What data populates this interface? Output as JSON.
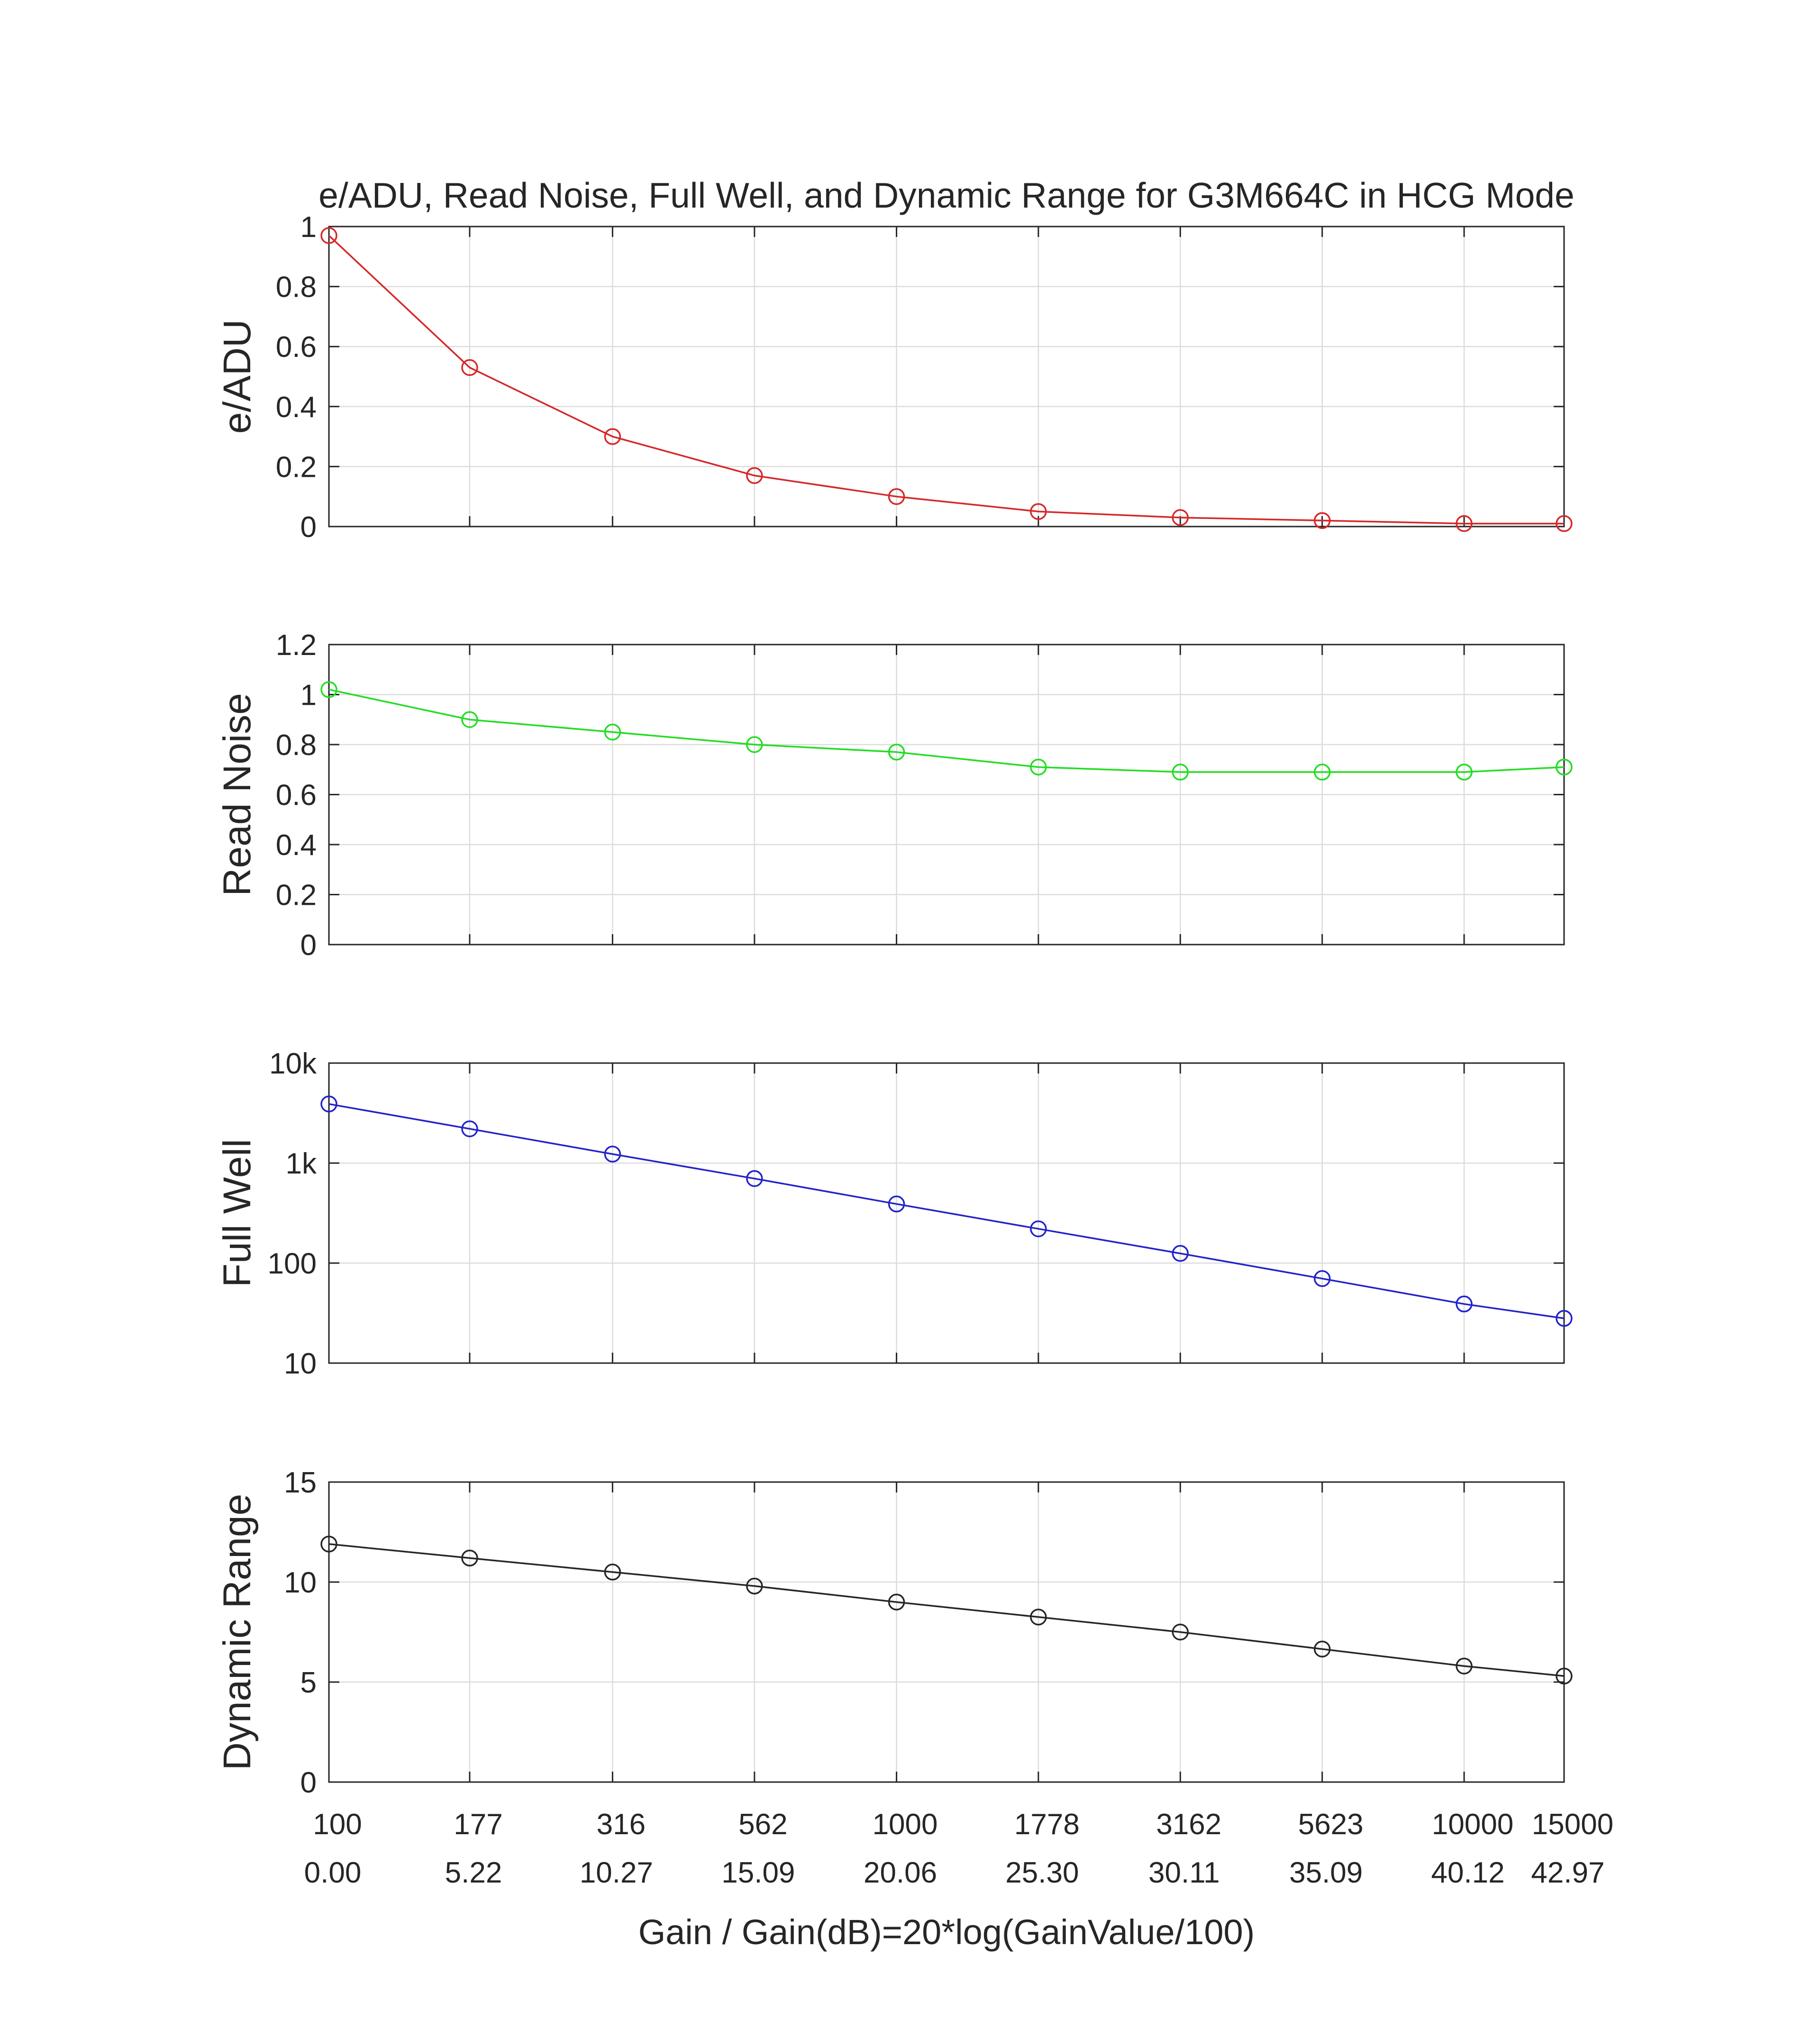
{
  "chart_data": {
    "type": "line",
    "title": "e/ADU, Read Noise, Full Well, and Dynamic Range for G3M664C in HCG Mode",
    "xlabel": "Gain / Gain(dB)=20*log(GainValue/100)",
    "x_gain": [
      100,
      177,
      316,
      562,
      1000,
      1778,
      3162,
      5623,
      10000,
      15000
    ],
    "x_tick_labels_gain": [
      "100",
      "177",
      "316",
      "562",
      "1000",
      "1778",
      "3162",
      "5623",
      "10000",
      "15000"
    ],
    "x_tick_labels_db": [
      "0.00",
      "5.22",
      "10.27",
      "15.09",
      "20.06",
      "25.30",
      "30.11",
      "35.09",
      "40.12",
      "42.97"
    ],
    "x_scale": "log",
    "grid": true,
    "marker": "circle",
    "panels": [
      {
        "ylabel": "e/ADU",
        "color": "#d62728",
        "scale": "linear",
        "ylim": [
          0,
          1
        ],
        "yticks": [
          0,
          0.2,
          0.4,
          0.6,
          0.8,
          1
        ],
        "ytick_labels": [
          "0",
          "0.2",
          "0.4",
          "0.6",
          "0.8",
          "1"
        ],
        "values": [
          0.97,
          0.53,
          0.3,
          0.17,
          0.1,
          0.05,
          0.03,
          0.02,
          0.01,
          0.01
        ]
      },
      {
        "ylabel": "Read Noise",
        "color": "#22dd22",
        "scale": "linear",
        "ylim": [
          0,
          1.2
        ],
        "yticks": [
          0,
          0.2,
          0.4,
          0.6,
          0.8,
          1,
          1.2
        ],
        "ytick_labels": [
          "0",
          "0.2",
          "0.4",
          "0.6",
          "0.8",
          "1",
          "1.2"
        ],
        "values": [
          1.02,
          0.9,
          0.85,
          0.8,
          0.77,
          0.71,
          0.69,
          0.69,
          0.69,
          0.71
        ]
      },
      {
        "ylabel": "Full Well",
        "color": "#2222cc",
        "scale": "log",
        "ylim": [
          10,
          10000
        ],
        "yticks": [
          10,
          100,
          1000,
          10000
        ],
        "ytick_labels": [
          "10",
          "100",
          "1k",
          "10k"
        ],
        "values": [
          3900,
          2200,
          1230,
          700,
          390,
          220,
          125,
          70,
          39,
          28
        ]
      },
      {
        "ylabel": "Dynamic Range",
        "color": "#262626",
        "scale": "linear",
        "ylim": [
          0,
          15
        ],
        "yticks": [
          0,
          5,
          10,
          15
        ],
        "ytick_labels": [
          "0",
          "5",
          "10",
          "15"
        ],
        "values": [
          11.9,
          11.2,
          10.5,
          9.8,
          9.0,
          8.25,
          7.5,
          6.65,
          5.8,
          5.3
        ]
      }
    ]
  }
}
